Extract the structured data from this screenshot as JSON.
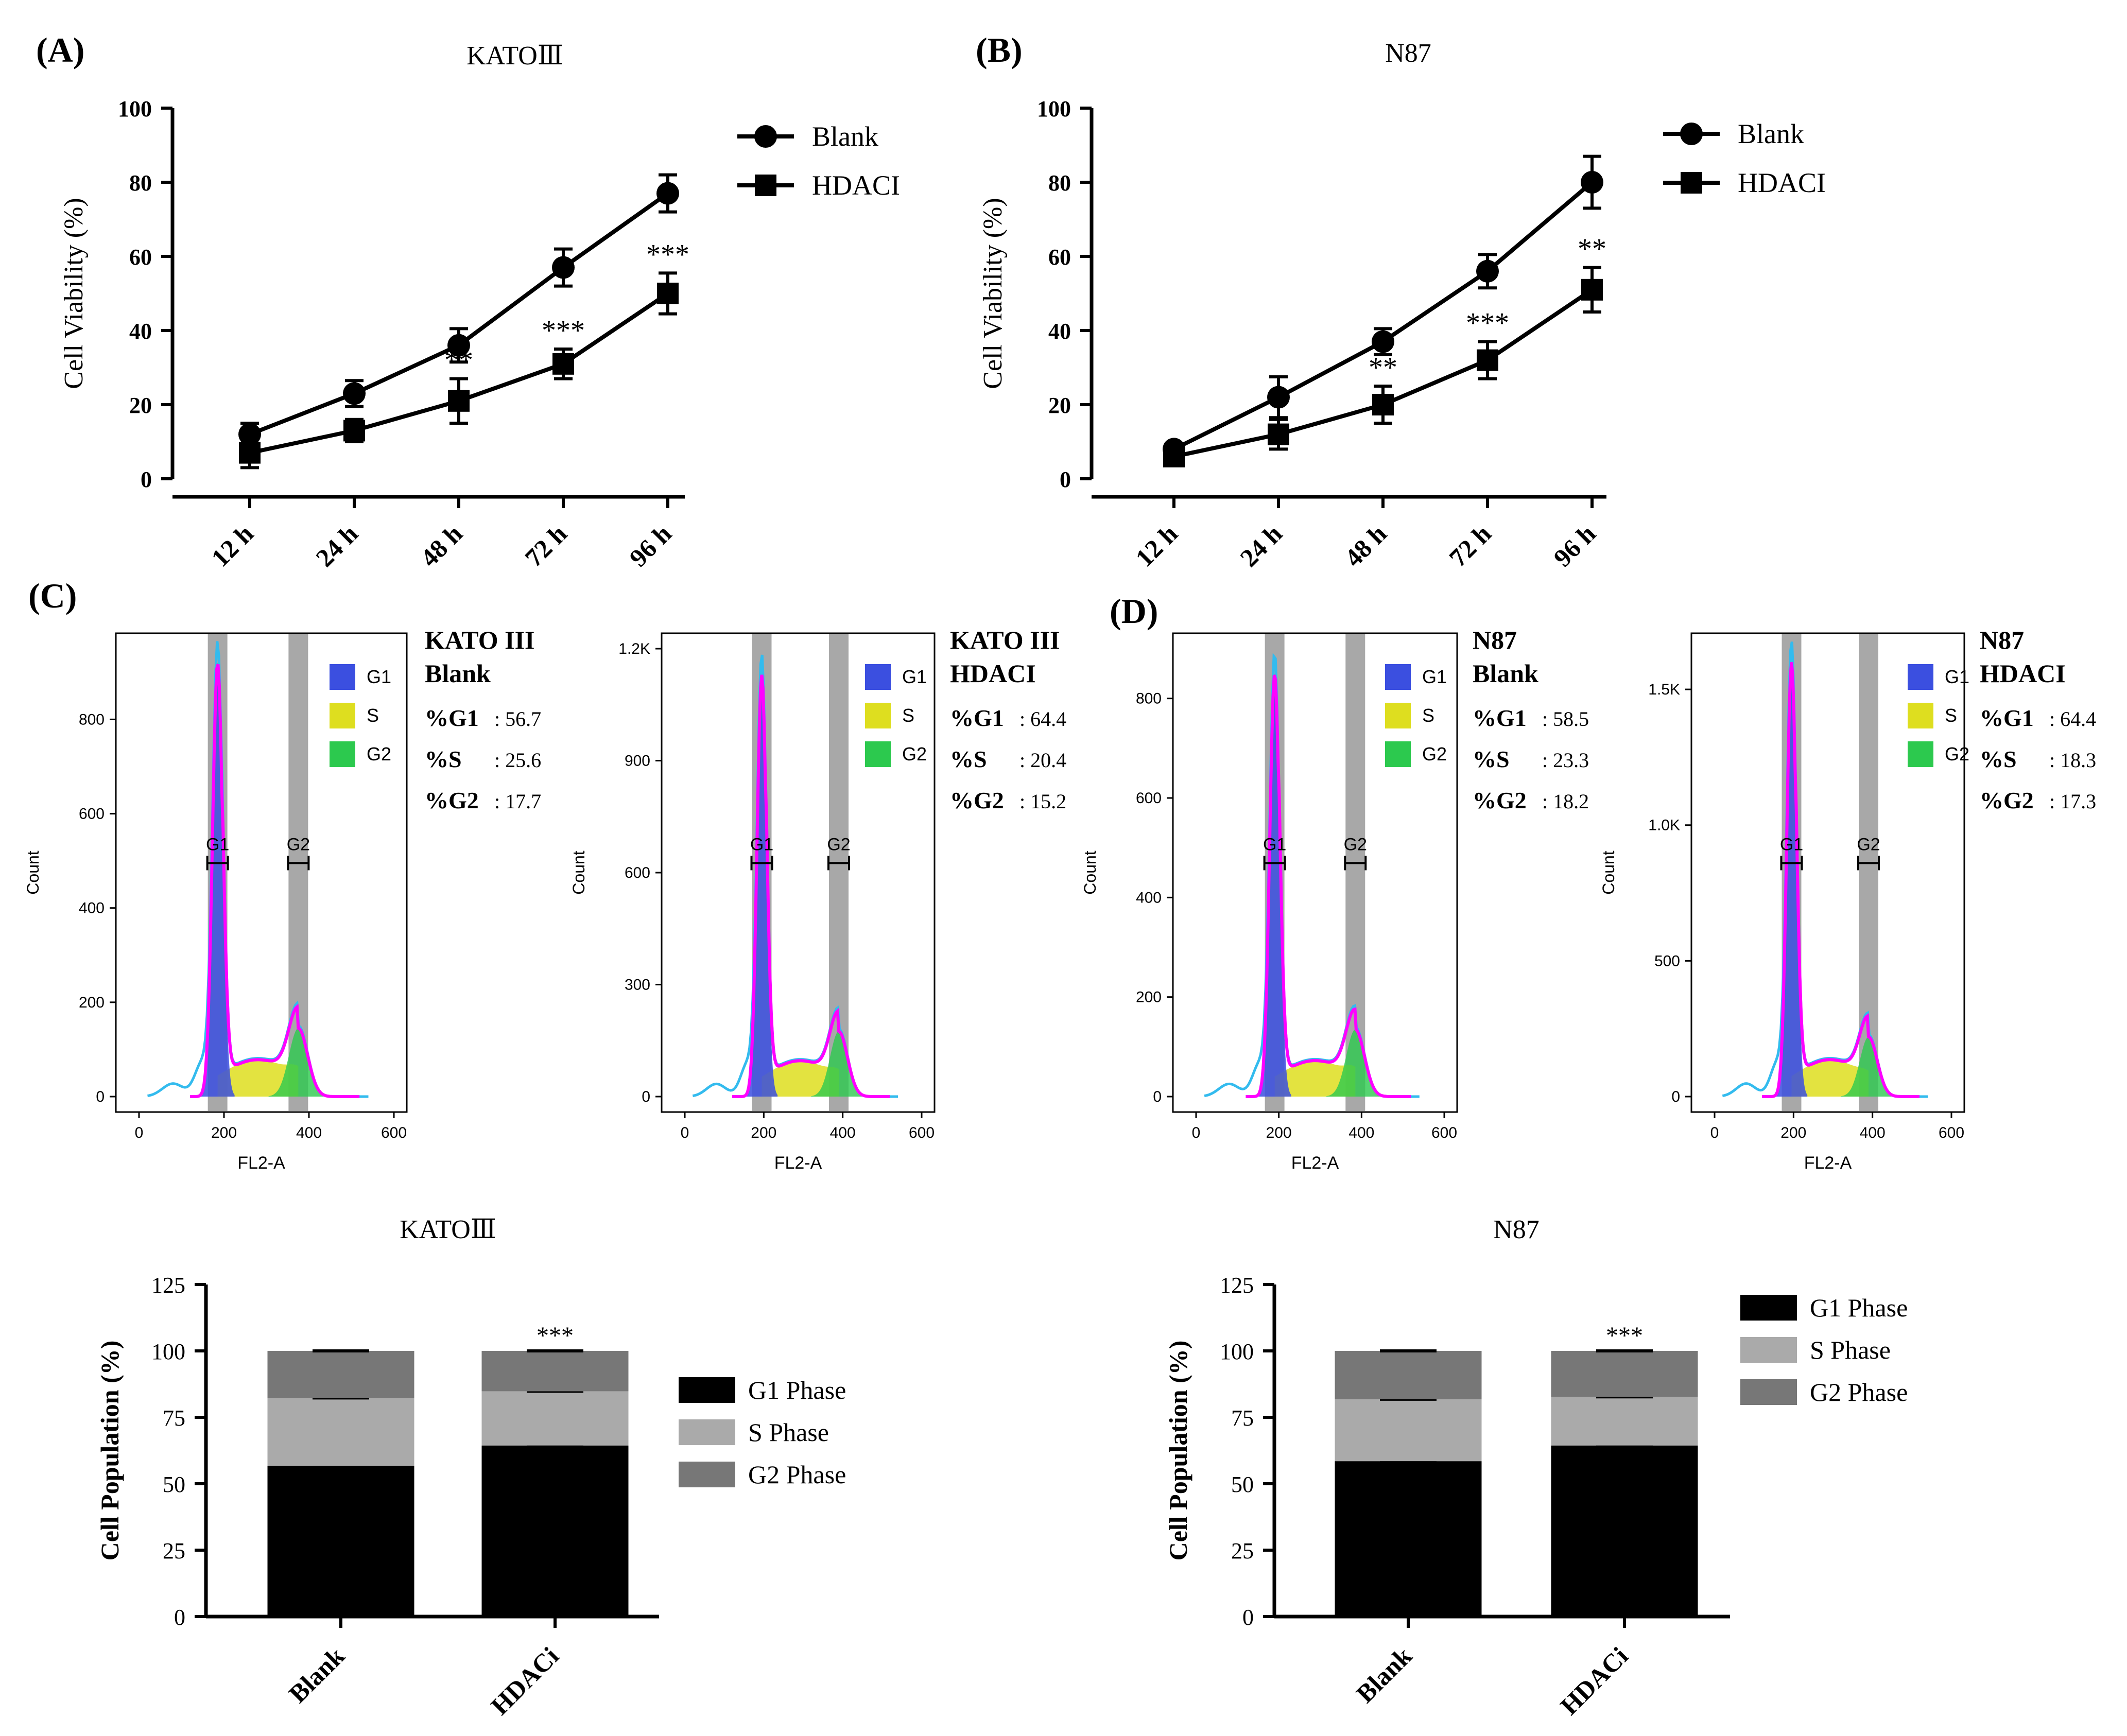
{
  "figure": {
    "panels": [
      "(A)",
      "(B)",
      "(C)",
      "(D)"
    ],
    "colors": {
      "g1_fill": "#3b4fe0",
      "s_fill": "#dede1f",
      "g2_fill": "#2cc94e",
      "fit_line": "#ff00ff",
      "raw_line": "#33bbee",
      "gate": "#999999",
      "g1_bar": "#000000",
      "s_bar": "#aaaaaa",
      "g2_bar": "#777777"
    }
  },
  "chart_data": [
    {
      "panel": "(A)",
      "type": "line",
      "title": "KATOⅢ",
      "xlabel": "",
      "ylabel": "Cell Viability (%)",
      "categories": [
        "12 h",
        "24 h",
        "48 h",
        "72 h",
        "96 h"
      ],
      "ylim": [
        0,
        100
      ],
      "yticks": [
        0,
        20,
        40,
        60,
        80,
        100
      ],
      "legend_position": "top-right",
      "series": [
        {
          "name": "Blank",
          "marker": "circle",
          "values": [
            12,
            23,
            36,
            57,
            77
          ],
          "errors": [
            3,
            3.5,
            4.5,
            5,
            5
          ]
        },
        {
          "name": "HDACI",
          "marker": "square",
          "values": [
            7,
            13,
            21,
            31,
            50
          ],
          "errors": [
            4,
            3,
            6,
            4,
            5.5
          ]
        }
      ],
      "annotations": [
        "",
        "",
        "**",
        "***",
        "***"
      ]
    },
    {
      "panel": "(B)",
      "type": "line",
      "title": "N87",
      "xlabel": "",
      "ylabel": "Cell Viability (%)",
      "categories": [
        "12 h",
        "24 h",
        "48 h",
        "72 h",
        "96 h"
      ],
      "ylim": [
        0,
        100
      ],
      "yticks": [
        0,
        20,
        40,
        60,
        80,
        100
      ],
      "legend_position": "top-right",
      "series": [
        {
          "name": "Blank",
          "marker": "circle",
          "values": [
            8,
            22,
            37,
            56,
            80
          ],
          "errors": [
            1.5,
            5.5,
            3.5,
            4.5,
            7
          ]
        },
        {
          "name": "HDACI",
          "marker": "square",
          "values": [
            6,
            12,
            20,
            32,
            51
          ],
          "errors": [
            1.5,
            4,
            5,
            5,
            6
          ]
        }
      ],
      "annotations": [
        "",
        "",
        "**",
        "***",
        "**"
      ]
    },
    {
      "panel": "(C)",
      "type": "area",
      "title": "KATO III Blank",
      "xlabel": "FL2-A",
      "ylabel": "Count",
      "xticks": [
        0,
        200,
        400,
        600
      ],
      "yticks": [
        "0",
        "200",
        "400",
        "600",
        "800"
      ],
      "xlim": [
        0,
        600
      ],
      "ylim": [
        0,
        950
      ],
      "g1_peak": {
        "x": 185,
        "y": 920
      },
      "g2_peak": {
        "x": 375,
        "y": 145
      },
      "gates": [
        "G1",
        "G2"
      ],
      "legend": [
        "G1",
        "S",
        "G2"
      ],
      "stats": [
        [
          "%G1",
          "56.7"
        ],
        [
          "%S",
          "25.6"
        ],
        [
          "%G2",
          "17.7"
        ]
      ]
    },
    {
      "panel": "(C)",
      "type": "area",
      "title": "KATO III HDACI",
      "xlabel": "FL2-A",
      "ylabel": "Count",
      "xticks": [
        0,
        200,
        400,
        600
      ],
      "yticks": [
        "0",
        "300",
        "600",
        "900",
        "1.2K"
      ],
      "xlim": [
        0,
        600
      ],
      "ylim": [
        0,
        1200
      ],
      "g1_peak": {
        "x": 195,
        "y": 1130
      },
      "g2_peak": {
        "x": 390,
        "y": 175
      },
      "gates": [
        "G1",
        "G2"
      ],
      "legend": [
        "G1",
        "S",
        "G2"
      ],
      "stats": [
        [
          "%G1",
          "64.4"
        ],
        [
          "%S",
          "20.4"
        ],
        [
          "%G2",
          "15.2"
        ]
      ]
    },
    {
      "panel": "(D)",
      "type": "area",
      "title": "N87 Blank",
      "xlabel": "FL2-A",
      "ylabel": "Count",
      "xticks": [
        0,
        200,
        400,
        600
      ],
      "yticks": [
        "0",
        "200",
        "400",
        "600",
        "800"
      ],
      "xlim": [
        0,
        600
      ],
      "ylim": [
        0,
        900
      ],
      "g1_peak": {
        "x": 190,
        "y": 850
      },
      "g2_peak": {
        "x": 385,
        "y": 135
      },
      "gates": [
        "G1",
        "G2"
      ],
      "legend": [
        "G1",
        "S",
        "G2"
      ],
      "stats": [
        [
          "%G1",
          "58.5"
        ],
        [
          "%S",
          "23.3"
        ],
        [
          "%G2",
          "18.2"
        ]
      ]
    },
    {
      "panel": "(D)",
      "type": "area",
      "title": "N87 HDACI",
      "xlabel": "FL2-A",
      "ylabel": "Count",
      "xticks": [
        0,
        200,
        400,
        600
      ],
      "yticks": [
        "0",
        "500",
        "1.0K",
        "1.5K"
      ],
      "xlim": [
        0,
        600
      ],
      "ylim": [
        0,
        1650
      ],
      "g1_peak": {
        "x": 195,
        "y": 1600
      },
      "g2_peak": {
        "x": 390,
        "y": 220
      },
      "gates": [
        "G1",
        "G2"
      ],
      "legend": [
        "G1",
        "S",
        "G2"
      ],
      "stats": [
        [
          "%G1",
          "64.4"
        ],
        [
          "%S",
          "18.3"
        ],
        [
          "%G2",
          "17.3"
        ]
      ]
    },
    {
      "panel": "(C)",
      "type": "bar",
      "stacked": true,
      "title": "KATOⅢ",
      "xlabel": "",
      "ylabel": "Cell Population (%)",
      "categories": [
        "Blank",
        "HDACi"
      ],
      "ylim": [
        0,
        125
      ],
      "yticks": [
        0,
        25,
        50,
        75,
        100,
        125
      ],
      "legend_position": "right",
      "series": [
        {
          "name": "G1 Phase",
          "values": [
            56.7,
            64.4
          ]
        },
        {
          "name": "S Phase",
          "values": [
            25.6,
            20.4
          ]
        },
        {
          "name": "G2 Phase",
          "values": [
            17.7,
            15.2
          ]
        }
      ],
      "annotations": {
        "HDACi": [
          "***",
          "***",
          "***"
        ]
      }
    },
    {
      "panel": "(D)",
      "type": "bar",
      "stacked": true,
      "title": "N87",
      "xlabel": "",
      "ylabel": "Cell Population (%)",
      "categories": [
        "Blank",
        "HDACi"
      ],
      "ylim": [
        0,
        125
      ],
      "yticks": [
        0,
        25,
        50,
        75,
        100,
        125
      ],
      "legend_position": "top-right",
      "series": [
        {
          "name": "G1 Phase",
          "values": [
            58.5,
            64.4
          ]
        },
        {
          "name": "S Phase",
          "values": [
            23.3,
            18.3
          ]
        },
        {
          "name": "G2 Phase",
          "values": [
            18.2,
            17.3
          ]
        }
      ],
      "annotations": {
        "HDACi": [
          "***",
          "***",
          "***"
        ]
      }
    }
  ]
}
